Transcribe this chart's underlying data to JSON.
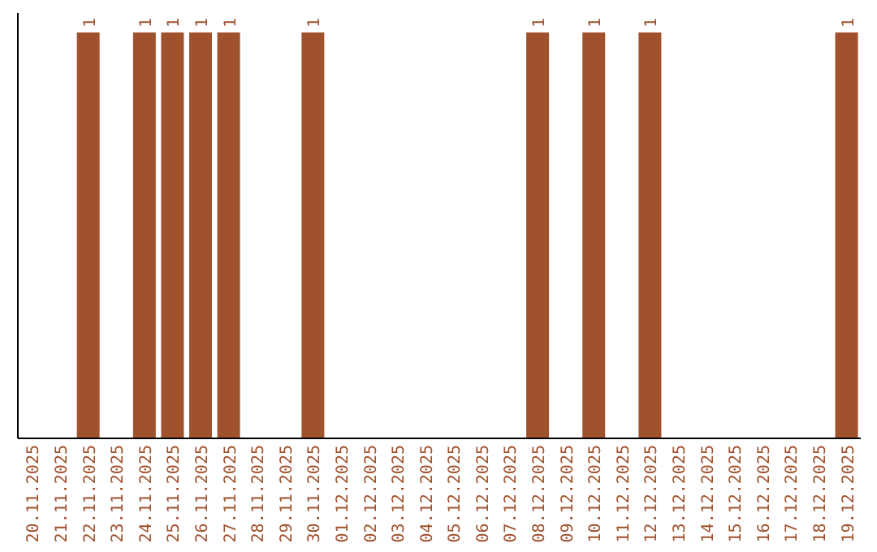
{
  "chart_data": {
    "type": "bar",
    "categories": [
      "20.11.2025",
      "21.11.2025",
      "22.11.2025",
      "23.11.2025",
      "24.11.2025",
      "25.11.2025",
      "26.11.2025",
      "27.11.2025",
      "28.11.2025",
      "29.11.2025",
      "30.11.2025",
      "01.12.2025",
      "02.12.2025",
      "03.12.2025",
      "04.12.2025",
      "05.12.2025",
      "06.12.2025",
      "07.12.2025",
      "08.12.2025",
      "09.12.2025",
      "10.12.2025",
      "11.12.2025",
      "12.12.2025",
      "13.12.2025",
      "14.12.2025",
      "15.12.2025",
      "16.12.2025",
      "17.12.2025",
      "18.12.2025",
      "19.12.2025"
    ],
    "values": [
      null,
      null,
      1,
      null,
      1,
      1,
      1,
      1,
      null,
      null,
      1,
      null,
      null,
      null,
      null,
      null,
      null,
      null,
      1,
      null,
      1,
      null,
      1,
      null,
      null,
      null,
      null,
      null,
      null,
      1
    ],
    "color": "#a0522d",
    "data_labels": true
  }
}
